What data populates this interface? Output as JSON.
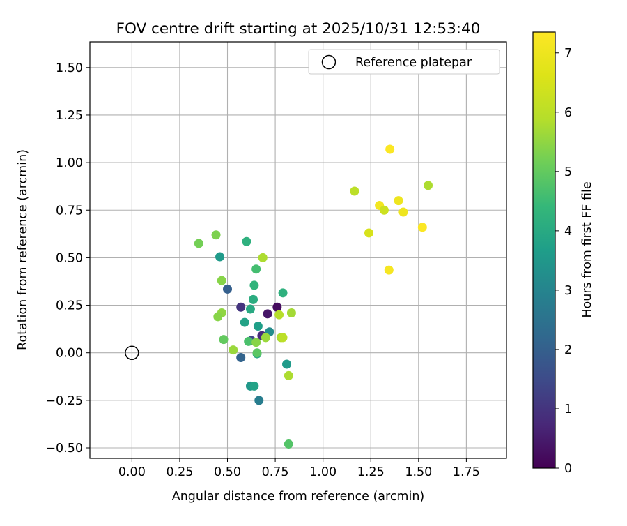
{
  "chart_data": {
    "type": "scatter",
    "title": "FOV centre drift starting at 2025/10/31 12:53:40",
    "xlabel": "Angular distance from reference (arcmin)",
    "ylabel": "Rotation from reference (arcmin)",
    "xlim": [
      -0.22,
      1.96
    ],
    "ylim": [
      -0.555,
      1.635
    ],
    "xticks": [
      0.0,
      0.25,
      0.5,
      0.75,
      1.0,
      1.25,
      1.5,
      1.75
    ],
    "xtick_labels": [
      "0.00",
      "0.25",
      "0.50",
      "0.75",
      "1.00",
      "1.25",
      "1.50",
      "1.75"
    ],
    "yticks": [
      -0.5,
      -0.25,
      0.0,
      0.25,
      0.5,
      0.75,
      1.0,
      1.25,
      1.5
    ],
    "ytick_labels": [
      "−0.50",
      "−0.25",
      "0.00",
      "0.25",
      "0.50",
      "0.75",
      "1.00",
      "1.25",
      "1.50"
    ],
    "grid": true,
    "legend": {
      "position": "top-right",
      "label": "Reference platepar"
    },
    "reference_point": {
      "x": 0.0,
      "y": 0.0
    },
    "colorbar": {
      "label": "Hours from first FF file",
      "range": [
        0,
        7.35
      ],
      "ticks": [
        0,
        1,
        2,
        3,
        4,
        5,
        6,
        7
      ],
      "tick_labels": [
        "0",
        "1",
        "2",
        "3",
        "4",
        "5",
        "6",
        "7"
      ],
      "colormap": "viridis"
    },
    "points": [
      {
        "x": 0.35,
        "y": 0.575,
        "h": 5.2
      },
      {
        "x": 0.44,
        "y": 0.62,
        "h": 5.3
      },
      {
        "x": 0.46,
        "y": 0.505,
        "h": 3.6
      },
      {
        "x": 0.6,
        "y": 0.585,
        "h": 4.2
      },
      {
        "x": 0.685,
        "y": 0.5,
        "h": 5.8
      },
      {
        "x": 0.47,
        "y": 0.38,
        "h": 5.4
      },
      {
        "x": 0.5,
        "y": 0.335,
        "h": 2.0
      },
      {
        "x": 0.65,
        "y": 0.44,
        "h": 4.6
      },
      {
        "x": 0.64,
        "y": 0.355,
        "h": 4.3
      },
      {
        "x": 0.79,
        "y": 0.315,
        "h": 4.2
      },
      {
        "x": 0.57,
        "y": 0.24,
        "h": 1.0
      },
      {
        "x": 0.62,
        "y": 0.23,
        "h": 4.0
      },
      {
        "x": 0.635,
        "y": 0.28,
        "h": 4.1
      },
      {
        "x": 0.76,
        "y": 0.24,
        "h": 0.2
      },
      {
        "x": 0.71,
        "y": 0.205,
        "h": 0.4
      },
      {
        "x": 0.77,
        "y": 0.2,
        "h": 5.9
      },
      {
        "x": 0.835,
        "y": 0.21,
        "h": 5.7
      },
      {
        "x": 0.47,
        "y": 0.21,
        "h": 5.5
      },
      {
        "x": 0.45,
        "y": 0.19,
        "h": 5.4
      },
      {
        "x": 0.59,
        "y": 0.16,
        "h": 3.8
      },
      {
        "x": 0.66,
        "y": 0.14,
        "h": 3.7
      },
      {
        "x": 0.72,
        "y": 0.11,
        "h": 3.2
      },
      {
        "x": 0.68,
        "y": 0.09,
        "h": 0.8
      },
      {
        "x": 0.625,
        "y": 0.065,
        "h": 1.4
      },
      {
        "x": 0.61,
        "y": 0.06,
        "h": 4.7
      },
      {
        "x": 0.48,
        "y": 0.07,
        "h": 5.0
      },
      {
        "x": 0.7,
        "y": 0.08,
        "h": 5.6
      },
      {
        "x": 0.78,
        "y": 0.08,
        "h": 5.8
      },
      {
        "x": 0.79,
        "y": 0.08,
        "h": 6.0
      },
      {
        "x": 0.65,
        "y": 0.055,
        "h": 5.4
      },
      {
        "x": 0.53,
        "y": 0.015,
        "h": 5.6
      },
      {
        "x": 0.655,
        "y": -0.005,
        "h": 3.9
      },
      {
        "x": 0.655,
        "y": 0.0,
        "h": 4.9
      },
      {
        "x": 0.57,
        "y": -0.025,
        "h": 2.1
      },
      {
        "x": 0.81,
        "y": -0.06,
        "h": 3.6
      },
      {
        "x": 0.82,
        "y": -0.12,
        "h": 5.8
      },
      {
        "x": 0.62,
        "y": -0.175,
        "h": 3.5
      },
      {
        "x": 0.64,
        "y": -0.175,
        "h": 3.8
      },
      {
        "x": 0.665,
        "y": -0.25,
        "h": 2.8
      },
      {
        "x": 0.82,
        "y": -0.48,
        "h": 4.8
      },
      {
        "x": 1.165,
        "y": 0.85,
        "h": 6.0
      },
      {
        "x": 1.55,
        "y": 0.88,
        "h": 5.8
      },
      {
        "x": 1.35,
        "y": 1.07,
        "h": 7.3
      },
      {
        "x": 1.295,
        "y": 0.775,
        "h": 7.1
      },
      {
        "x": 1.395,
        "y": 0.8,
        "h": 7.0
      },
      {
        "x": 1.32,
        "y": 0.75,
        "h": 6.3
      },
      {
        "x": 1.42,
        "y": 0.74,
        "h": 7.0
      },
      {
        "x": 1.24,
        "y": 0.63,
        "h": 6.5
      },
      {
        "x": 1.52,
        "y": 0.66,
        "h": 7.3
      },
      {
        "x": 1.345,
        "y": 0.435,
        "h": 7.2
      }
    ]
  }
}
